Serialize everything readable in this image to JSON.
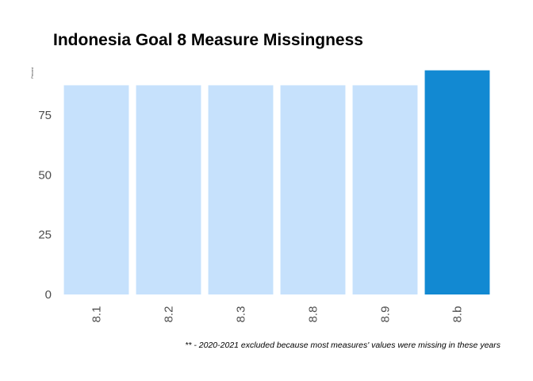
{
  "chart_data": {
    "type": "bar",
    "title": "Indonesia Goal 8 Measure Missingness",
    "ylabel": "Percent",
    "xlabel": "",
    "categories": [
      "8.1",
      "8.2",
      "8.3",
      "8.8",
      "8.9",
      "8.b"
    ],
    "values": [
      87.5,
      87.5,
      87.5,
      87.5,
      87.5,
      93.75
    ],
    "ylim": [
      0,
      95
    ],
    "yticks": [
      0,
      25,
      50,
      75
    ],
    "grid": false,
    "legend": "none",
    "highlight_index": 5,
    "colors": {
      "default": "#c6e1fc",
      "highlight": "#1289d2"
    },
    "caption": "** - 2020-2021 excluded because most measures' values were missing in these years"
  }
}
